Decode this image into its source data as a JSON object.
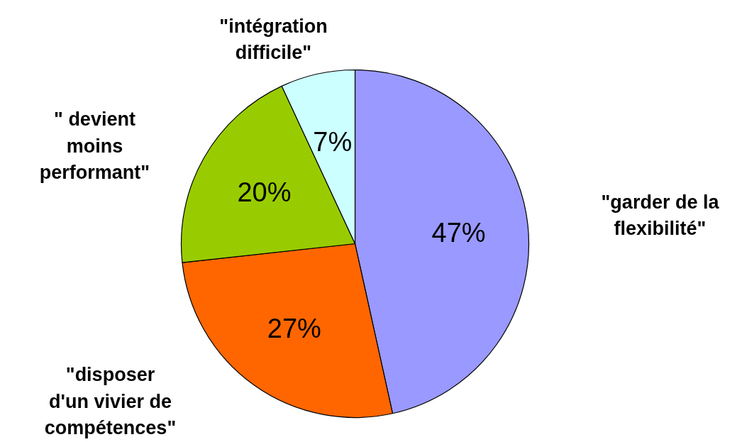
{
  "chart_data": {
    "type": "pie",
    "categories": [
      "\"garder de la\nflexibilité\"",
      "\"disposer\nd'un vivier de\ncompétences\"",
      "\" devient\nmoins\nperformant\"",
      "\"intégration\ndifficile\""
    ],
    "values": [
      47,
      27,
      20,
      7
    ],
    "colors": [
      "#9999ff",
      "#ff6600",
      "#99cc00",
      "#ccffff"
    ],
    "value_labels": [
      "47%",
      "27%",
      "20%",
      "7%"
    ]
  }
}
